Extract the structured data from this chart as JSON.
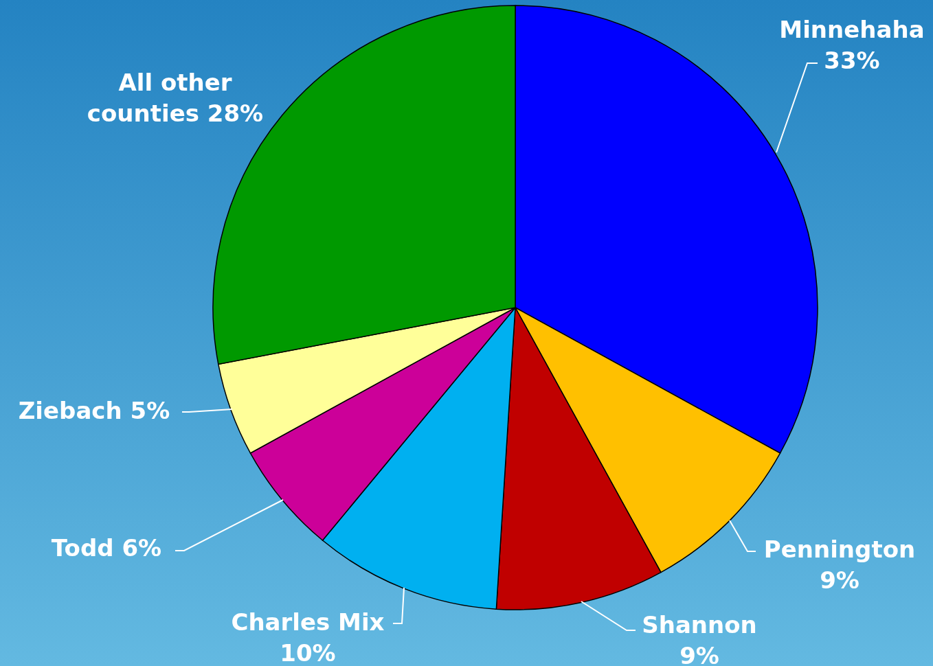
{
  "chart_data": {
    "type": "pie",
    "categories": [
      "Minnehaha",
      "Pennington",
      "Shannon",
      "Charles Mix",
      "Todd",
      "Ziebach",
      "All other counties"
    ],
    "values": [
      33,
      9,
      9,
      10,
      6,
      5,
      28
    ],
    "value_labels": [
      "33%",
      "9%",
      "9%",
      "10%",
      "6%",
      "5%",
      "28%"
    ],
    "colors": [
      "#0000ff",
      "#ffc000",
      "#c00000",
      "#00b0f0",
      "#cc0099",
      "#ffff99",
      "#009900"
    ]
  }
}
